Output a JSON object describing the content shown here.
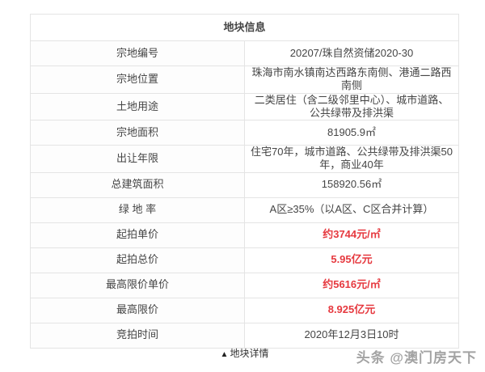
{
  "table": {
    "title": "地块信息",
    "rows": [
      {
        "label": "宗地编号",
        "value": "20207/珠自然资储2020-30",
        "highlight": false
      },
      {
        "label": "宗地位置",
        "value": "珠海市南水镇南达西路东南侧、港通二路西南侧",
        "highlight": false
      },
      {
        "label": "土地用途",
        "value": "二类居住（含二级邻里中心）、城市道路、公共绿带及排洪渠",
        "highlight": false
      },
      {
        "label": "宗地面积",
        "value": "81905.9㎡",
        "highlight": false
      },
      {
        "label": "出让年限",
        "value": "住宅70年，城市道路、公共绿带及排洪渠50年，商业40年",
        "highlight": false
      },
      {
        "label": "总建筑面积",
        "value": "158920.56㎡",
        "highlight": false
      },
      {
        "label": "绿 地 率",
        "value": "A区≥35%（以A区、C区合并计算）",
        "highlight": false
      },
      {
        "label": "起拍单价",
        "value": "约3744元/㎡",
        "highlight": true
      },
      {
        "label": "起拍总价",
        "value": "5.95亿元",
        "highlight": true
      },
      {
        "label": "最高限价单价",
        "value": "约5616元/㎡",
        "highlight": true
      },
      {
        "label": "最高限价",
        "value": "8.925亿元",
        "highlight": true
      },
      {
        "label": "竞拍时间",
        "value": "2020年12月3日10时",
        "highlight": false
      }
    ]
  },
  "footer": {
    "toggle_icon": "▲",
    "toggle_label": "地块详情"
  },
  "watermark": {
    "text": "头条 @澳门房天下"
  },
  "colors": {
    "highlight_red": "#e6393f",
    "border_gray": "#e4e4e4",
    "text_dark": "#404040"
  }
}
